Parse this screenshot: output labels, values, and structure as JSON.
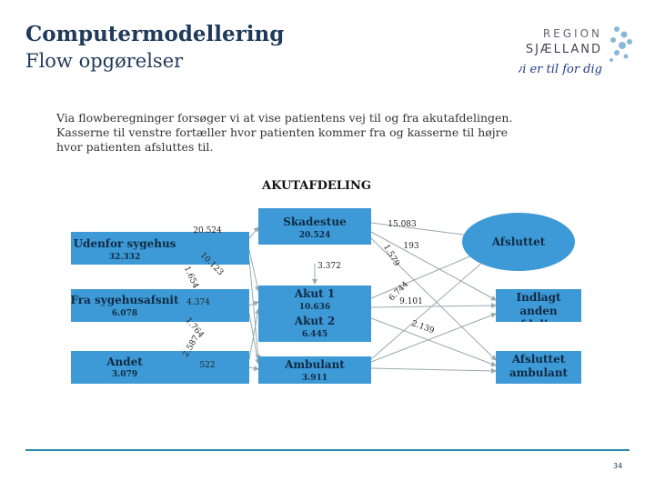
{
  "header": {
    "title": "Computermodellering",
    "subtitle": "Flow opgørelser"
  },
  "logo": {
    "line1": "REGION",
    "line2": "SJÆLLAND",
    "tagline": "- vi er til for dig"
  },
  "intro": "Via flowberegninger forsøger vi at vise patientens vej til og fra akutafdelingen. Kasserne til venstre fortæller hvor patienten kommer fra og kasserne til højre hvor patienten afsluttes til.",
  "diagram": {
    "title": "AKUTAFDELING",
    "nodes": [
      {
        "label": "Udenfor sygehus",
        "value": "32.332"
      },
      {
        "label": "Fra sygehusafsnit",
        "value": "6.078"
      },
      {
        "label": "Andet",
        "value": "3.079"
      },
      {
        "label": "Skadestue",
        "value": "20.524"
      },
      {
        "label": "Akut 1",
        "value": "10.636"
      },
      {
        "label": "Akut 2",
        "value": "6.445"
      },
      {
        "label": "Ambulant",
        "value": "3.911"
      },
      {
        "label": "Afsluttet"
      },
      {
        "label": "Indlagt anden afdeling"
      },
      {
        "label": "Afsluttet ambulant"
      }
    ],
    "edge_labels": [
      "20.524",
      "10.123",
      "1.654",
      "4.374",
      "1.764",
      "2.587",
      "522",
      "3.372",
      "15.083",
      "193",
      "1.579",
      "6.744",
      "9.101",
      "2.139"
    ]
  },
  "page_number": "34"
}
